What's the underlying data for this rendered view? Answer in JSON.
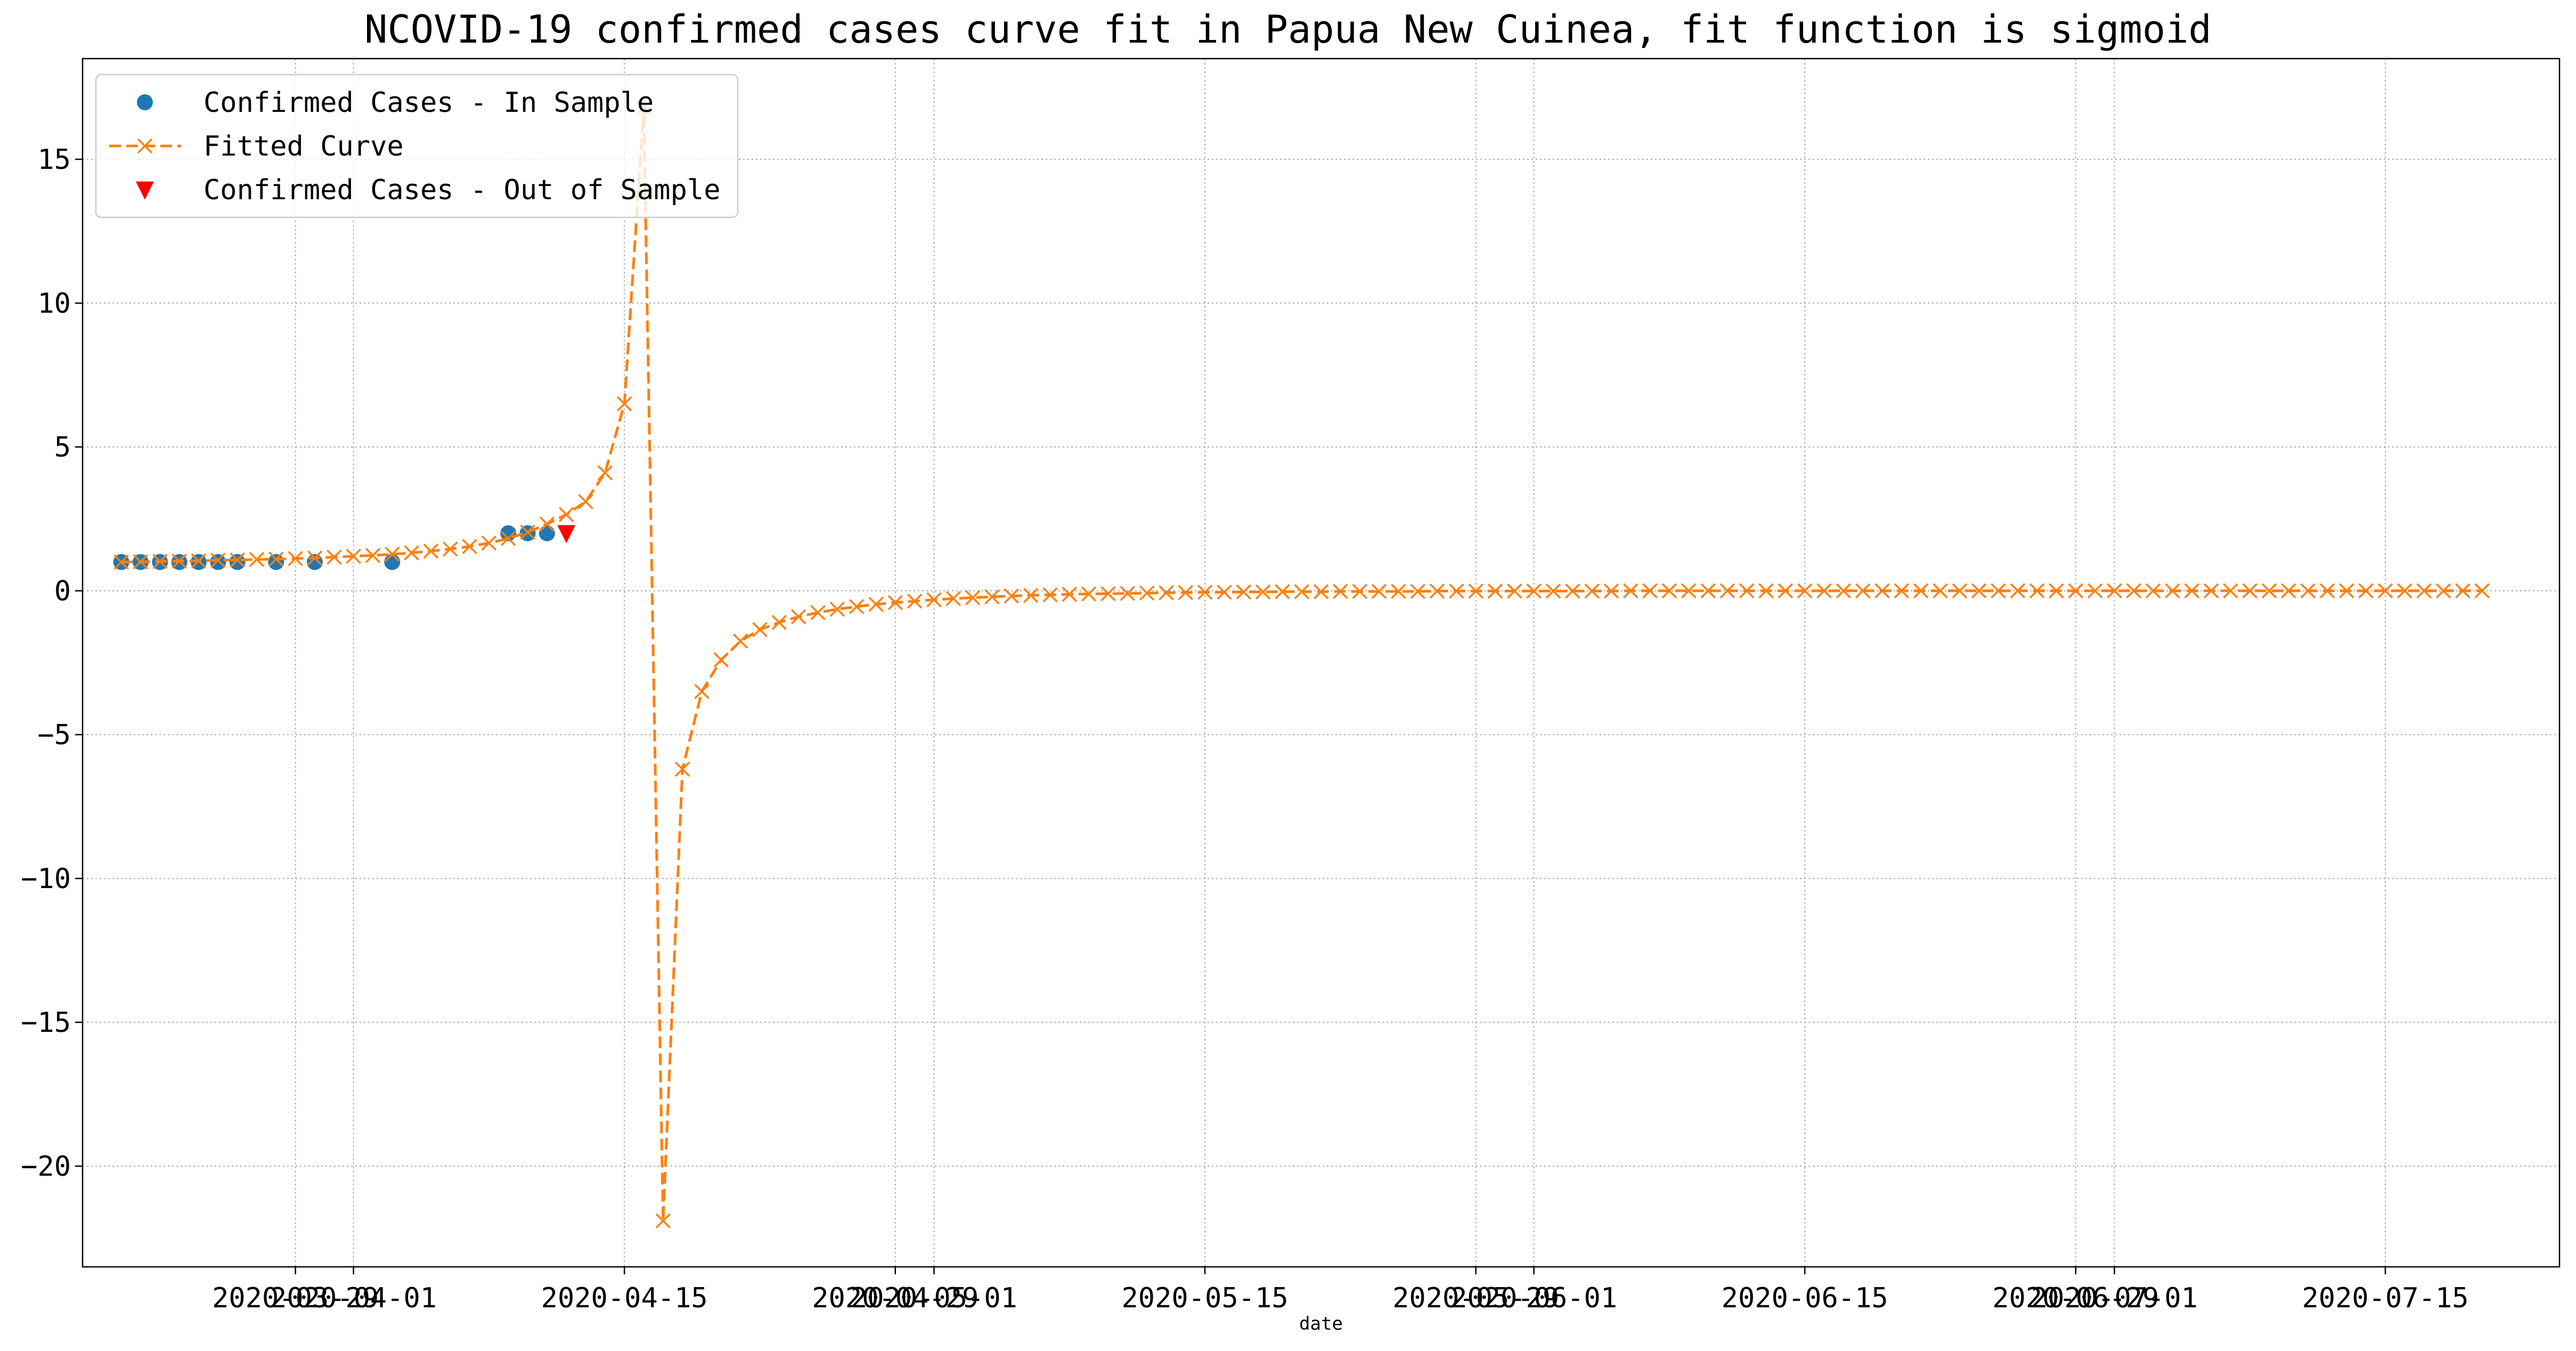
{
  "chart_data": {
    "type": "line",
    "title": "NCOVID-19 confirmed cases curve fit in Papua New Cuinea, fit function is sigmoid",
    "xlabel": "date",
    "ylabel": "",
    "x_axis_type": "date",
    "xlim": [
      "2020-03-18",
      "2020-07-24"
    ],
    "ylim": [
      -23.5,
      18.5
    ],
    "yticks": [
      -20,
      -15,
      -10,
      -5,
      0,
      5,
      10,
      15
    ],
    "ytick_labels": [
      "−20",
      "−15",
      "−10",
      "−5",
      "0",
      "5",
      "10",
      "15"
    ],
    "xticks": [
      "2020-03-29",
      "2020-04-01",
      "2020-04-15",
      "2020-04-29",
      "2020-05-01",
      "2020-05-15",
      "2020-05-29",
      "2020-06-01",
      "2020-06-15",
      "2020-06-29",
      "2020-07-01",
      "2020-07-15"
    ],
    "grid": true,
    "legend_position": "top-left",
    "series": [
      {
        "name": "Confirmed Cases - In Sample",
        "style": "points",
        "marker": "circle",
        "color": "#1f77b4",
        "points": [
          [
            "2020-03-20",
            1
          ],
          [
            "2020-03-21",
            1
          ],
          [
            "2020-03-22",
            1
          ],
          [
            "2020-03-23",
            1
          ],
          [
            "2020-03-24",
            1
          ],
          [
            "2020-03-25",
            1
          ],
          [
            "2020-03-26",
            1
          ],
          [
            "2020-03-28",
            1
          ],
          [
            "2020-03-30",
            1
          ],
          [
            "2020-04-03",
            1
          ],
          [
            "2020-04-09",
            2
          ],
          [
            "2020-04-10",
            2
          ],
          [
            "2020-04-11",
            2
          ]
        ]
      },
      {
        "name": "Fitted Curve",
        "style": "dashed-line-x",
        "marker": "x",
        "color": "#ff7f0e",
        "start_date": "2020-03-20",
        "points": [
          [
            "2020-03-20",
            1.0
          ],
          [
            "2020-03-21",
            1.01
          ],
          [
            "2020-03-22",
            1.02
          ],
          [
            "2020-03-23",
            1.03
          ],
          [
            "2020-03-24",
            1.04
          ],
          [
            "2020-03-25",
            1.06
          ],
          [
            "2020-03-26",
            1.07
          ],
          [
            "2020-03-27",
            1.09
          ],
          [
            "2020-03-28",
            1.1
          ],
          [
            "2020-03-29",
            1.12
          ],
          [
            "2020-03-30",
            1.14
          ],
          [
            "2020-03-31",
            1.17
          ],
          [
            "2020-04-01",
            1.2
          ],
          [
            "2020-04-02",
            1.23
          ],
          [
            "2020-04-03",
            1.27
          ],
          [
            "2020-04-04",
            1.32
          ],
          [
            "2020-04-05",
            1.38
          ],
          [
            "2020-04-06",
            1.45
          ],
          [
            "2020-04-07",
            1.54
          ],
          [
            "2020-04-08",
            1.66
          ],
          [
            "2020-04-09",
            1.82
          ],
          [
            "2020-04-10",
            2.04
          ],
          [
            "2020-04-11",
            2.32
          ],
          [
            "2020-04-12",
            2.65
          ],
          [
            "2020-04-13",
            3.1
          ],
          [
            "2020-04-14",
            4.1
          ],
          [
            "2020-04-15",
            6.5
          ],
          [
            "2020-04-16",
            16.8
          ],
          [
            "2020-04-17",
            -21.9
          ],
          [
            "2020-04-18",
            -6.2
          ],
          [
            "2020-04-19",
            -3.5
          ],
          [
            "2020-04-20",
            -2.4
          ],
          [
            "2020-04-21",
            -1.75
          ],
          [
            "2020-04-22",
            -1.35
          ],
          [
            "2020-04-23",
            -1.1
          ],
          [
            "2020-04-24",
            -0.9
          ],
          [
            "2020-04-25",
            -0.76
          ],
          [
            "2020-04-26",
            -0.64
          ],
          [
            "2020-04-27",
            -0.55
          ],
          [
            "2020-04-28",
            -0.47
          ],
          [
            "2020-04-29",
            -0.41
          ],
          [
            "2020-04-30",
            -0.36
          ],
          [
            "2020-05-01",
            -0.31
          ],
          [
            "2020-05-02",
            -0.27
          ],
          [
            "2020-05-03",
            -0.24
          ],
          [
            "2020-05-04",
            -0.21
          ],
          [
            "2020-05-05",
            -0.18
          ],
          [
            "2020-05-06",
            -0.16
          ],
          [
            "2020-05-07",
            -0.14
          ],
          [
            "2020-05-08",
            -0.12
          ],
          [
            "2020-05-09",
            -0.11
          ],
          [
            "2020-05-10",
            -0.1
          ],
          [
            "2020-05-11",
            -0.09
          ],
          [
            "2020-05-12",
            -0.08
          ],
          [
            "2020-05-13",
            -0.07
          ],
          [
            "2020-05-14",
            -0.06
          ],
          [
            "2020-05-15",
            -0.05
          ],
          [
            "2020-05-16",
            -0.05
          ],
          [
            "2020-05-17",
            -0.04
          ],
          [
            "2020-05-18",
            -0.04
          ],
          [
            "2020-05-19",
            -0.03
          ],
          [
            "2020-05-20",
            -0.03
          ],
          [
            "2020-05-21",
            -0.03
          ],
          [
            "2020-05-22",
            -0.02
          ],
          [
            "2020-05-23",
            -0.02
          ],
          [
            "2020-05-24",
            -0.02
          ],
          [
            "2020-05-25",
            -0.02
          ],
          [
            "2020-05-26",
            -0.02
          ],
          [
            "2020-05-27",
            -0.01
          ],
          [
            "2020-05-28",
            -0.01
          ],
          [
            "2020-05-29",
            -0.01
          ],
          [
            "2020-05-30",
            -0.01
          ],
          [
            "2020-05-31",
            -0.01
          ],
          [
            "2020-06-01",
            -0.01
          ],
          [
            "2020-06-02",
            -0.01
          ],
          [
            "2020-06-03",
            -0.01
          ],
          [
            "2020-06-04",
            -0.01
          ],
          [
            "2020-06-05",
            -0.01
          ],
          [
            "2020-06-06",
            0
          ],
          [
            "2020-06-07",
            0
          ],
          [
            "2020-06-08",
            0
          ],
          [
            "2020-06-09",
            0
          ],
          [
            "2020-06-10",
            0
          ],
          [
            "2020-06-11",
            0
          ],
          [
            "2020-06-12",
            0
          ],
          [
            "2020-06-13",
            0
          ],
          [
            "2020-06-14",
            0
          ],
          [
            "2020-06-15",
            0
          ],
          [
            "2020-06-16",
            0
          ],
          [
            "2020-06-17",
            0
          ],
          [
            "2020-06-18",
            0
          ],
          [
            "2020-06-19",
            0
          ],
          [
            "2020-06-20",
            0
          ],
          [
            "2020-06-21",
            0
          ],
          [
            "2020-06-22",
            0
          ],
          [
            "2020-06-23",
            0
          ],
          [
            "2020-06-24",
            0
          ],
          [
            "2020-06-25",
            0
          ],
          [
            "2020-06-26",
            0
          ],
          [
            "2020-06-27",
            0
          ],
          [
            "2020-06-28",
            0
          ],
          [
            "2020-06-29",
            0
          ],
          [
            "2020-06-30",
            0
          ],
          [
            "2020-07-01",
            0
          ],
          [
            "2020-07-02",
            0
          ],
          [
            "2020-07-03",
            0
          ],
          [
            "2020-07-04",
            0
          ],
          [
            "2020-07-05",
            0
          ],
          [
            "2020-07-06",
            0
          ],
          [
            "2020-07-07",
            0
          ],
          [
            "2020-07-08",
            0
          ],
          [
            "2020-07-09",
            0
          ],
          [
            "2020-07-10",
            0
          ],
          [
            "2020-07-11",
            0
          ],
          [
            "2020-07-12",
            0
          ],
          [
            "2020-07-13",
            0
          ],
          [
            "2020-07-14",
            0
          ],
          [
            "2020-07-15",
            0
          ],
          [
            "2020-07-16",
            0
          ],
          [
            "2020-07-17",
            0
          ],
          [
            "2020-07-18",
            0
          ],
          [
            "2020-07-19",
            0
          ],
          [
            "2020-07-20",
            0
          ]
        ]
      },
      {
        "name": "Confirmed Cases - Out of Sample",
        "style": "points",
        "marker": "triangle-down",
        "color": "#ff0000",
        "points": [
          [
            "2020-04-12",
            2
          ]
        ]
      }
    ]
  }
}
